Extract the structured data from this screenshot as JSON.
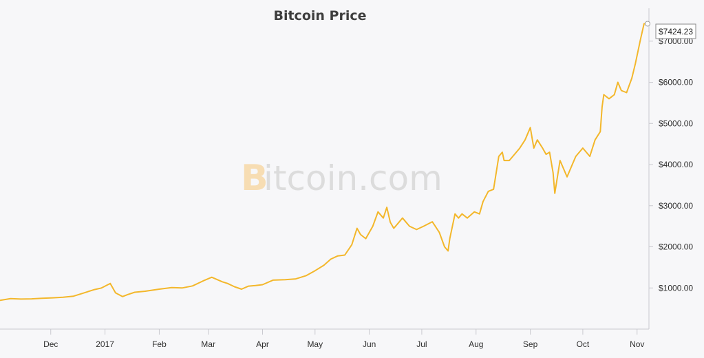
{
  "chart_data": {
    "type": "line",
    "title": "Bitcoin Price",
    "watermark": {
      "logo": "B",
      "text": "itcoin.com"
    },
    "xlabel": "",
    "ylabel": "",
    "ylim": [
      0,
      7800
    ],
    "y_ticks": [
      1000,
      2000,
      3000,
      4000,
      5000,
      6000,
      7000
    ],
    "y_tick_labels": [
      "$1000.00",
      "$2000.00",
      "$3000.00",
      "$4000.00",
      "$5000.00",
      "$6000.00",
      "$7000.00"
    ],
    "x_tick_labels": [
      "Dec",
      "2017",
      "Feb",
      "Mar",
      "Apr",
      "May",
      "Jun",
      "Jul",
      "Aug",
      "Sep",
      "Oct",
      "Nov"
    ],
    "x_tick_dates": [
      "2016-12-01",
      "2017-01-01",
      "2017-02-01",
      "2017-03-01",
      "2017-04-01",
      "2017-05-01",
      "2017-06-01",
      "2017-07-01",
      "2017-08-01",
      "2017-09-01",
      "2017-10-01",
      "2017-11-01"
    ],
    "line_color": "#f3b72b",
    "last_value_label": "$7424.23",
    "grid": false,
    "series": [
      {
        "x": [
          "2016-11-02",
          "2016-11-08",
          "2016-11-14",
          "2016-11-20",
          "2016-11-26",
          "2016-12-02",
          "2016-12-08",
          "2016-12-14",
          "2016-12-20",
          "2016-12-26",
          "2016-12-30",
          "2017-01-04",
          "2017-01-07",
          "2017-01-11",
          "2017-01-14",
          "2017-01-18",
          "2017-01-24",
          "2017-02-01",
          "2017-02-08",
          "2017-02-14",
          "2017-02-20",
          "2017-02-26",
          "2017-03-03",
          "2017-03-09",
          "2017-03-12",
          "2017-03-16",
          "2017-03-20",
          "2017-03-24",
          "2017-03-28",
          "2017-04-01",
          "2017-04-07",
          "2017-04-14",
          "2017-04-20",
          "2017-04-26",
          "2017-05-01",
          "2017-05-06",
          "2017-05-10",
          "2017-05-14",
          "2017-05-18",
          "2017-05-22",
          "2017-05-25",
          "2017-05-27",
          "2017-05-30",
          "2017-06-03",
          "2017-06-06",
          "2017-06-09",
          "2017-06-11",
          "2017-06-13",
          "2017-06-15",
          "2017-06-17",
          "2017-06-20",
          "2017-06-22",
          "2017-06-24",
          "2017-06-28",
          "2017-07-02",
          "2017-07-07",
          "2017-07-11",
          "2017-07-14",
          "2017-07-16",
          "2017-07-17",
          "2017-07-20",
          "2017-07-22",
          "2017-07-24",
          "2017-07-27",
          "2017-07-31",
          "2017-08-03",
          "2017-08-05",
          "2017-08-08",
          "2017-08-11",
          "2017-08-14",
          "2017-08-16",
          "2017-08-17",
          "2017-08-20",
          "2017-08-22",
          "2017-08-26",
          "2017-08-29",
          "2017-09-01",
          "2017-09-03",
          "2017-09-05",
          "2017-09-08",
          "2017-09-10",
          "2017-09-12",
          "2017-09-14",
          "2017-09-15",
          "2017-09-18",
          "2017-09-20",
          "2017-09-22",
          "2017-09-25",
          "2017-09-27",
          "2017-09-29",
          "2017-10-01",
          "2017-10-05",
          "2017-10-08",
          "2017-10-11",
          "2017-10-12",
          "2017-10-13",
          "2017-10-16",
          "2017-10-19",
          "2017-10-21",
          "2017-10-23",
          "2017-10-26",
          "2017-10-29",
          "2017-10-31",
          "2017-11-03",
          "2017-11-05",
          "2017-11-07"
        ],
        "values": [
          700,
          740,
          730,
          735,
          750,
          760,
          775,
          800,
          880,
          960,
          1000,
          1110,
          880,
          790,
          840,
          895,
          920,
          970,
          1010,
          1000,
          1050,
          1170,
          1260,
          1150,
          1110,
          1030,
          970,
          1045,
          1060,
          1080,
          1190,
          1200,
          1220,
          1300,
          1420,
          1550,
          1700,
          1780,
          1800,
          2050,
          2450,
          2300,
          2200,
          2500,
          2850,
          2700,
          2960,
          2600,
          2450,
          2550,
          2700,
          2600,
          2500,
          2420,
          2500,
          2610,
          2350,
          2000,
          1900,
          2200,
          2800,
          2700,
          2800,
          2700,
          2850,
          2800,
          3100,
          3350,
          3400,
          4200,
          4300,
          4100,
          4100,
          4200,
          4400,
          4600,
          4900,
          4400,
          4600,
          4400,
          4250,
          4300,
          3800,
          3300,
          4100,
          3900,
          3700,
          4000,
          4200,
          4300,
          4400,
          4200,
          4600,
          4800,
          5400,
          5700,
          5600,
          5700,
          6000,
          5800,
          5750,
          6100,
          6450,
          7050,
          7424.23,
          7424.23
        ]
      }
    ]
  }
}
